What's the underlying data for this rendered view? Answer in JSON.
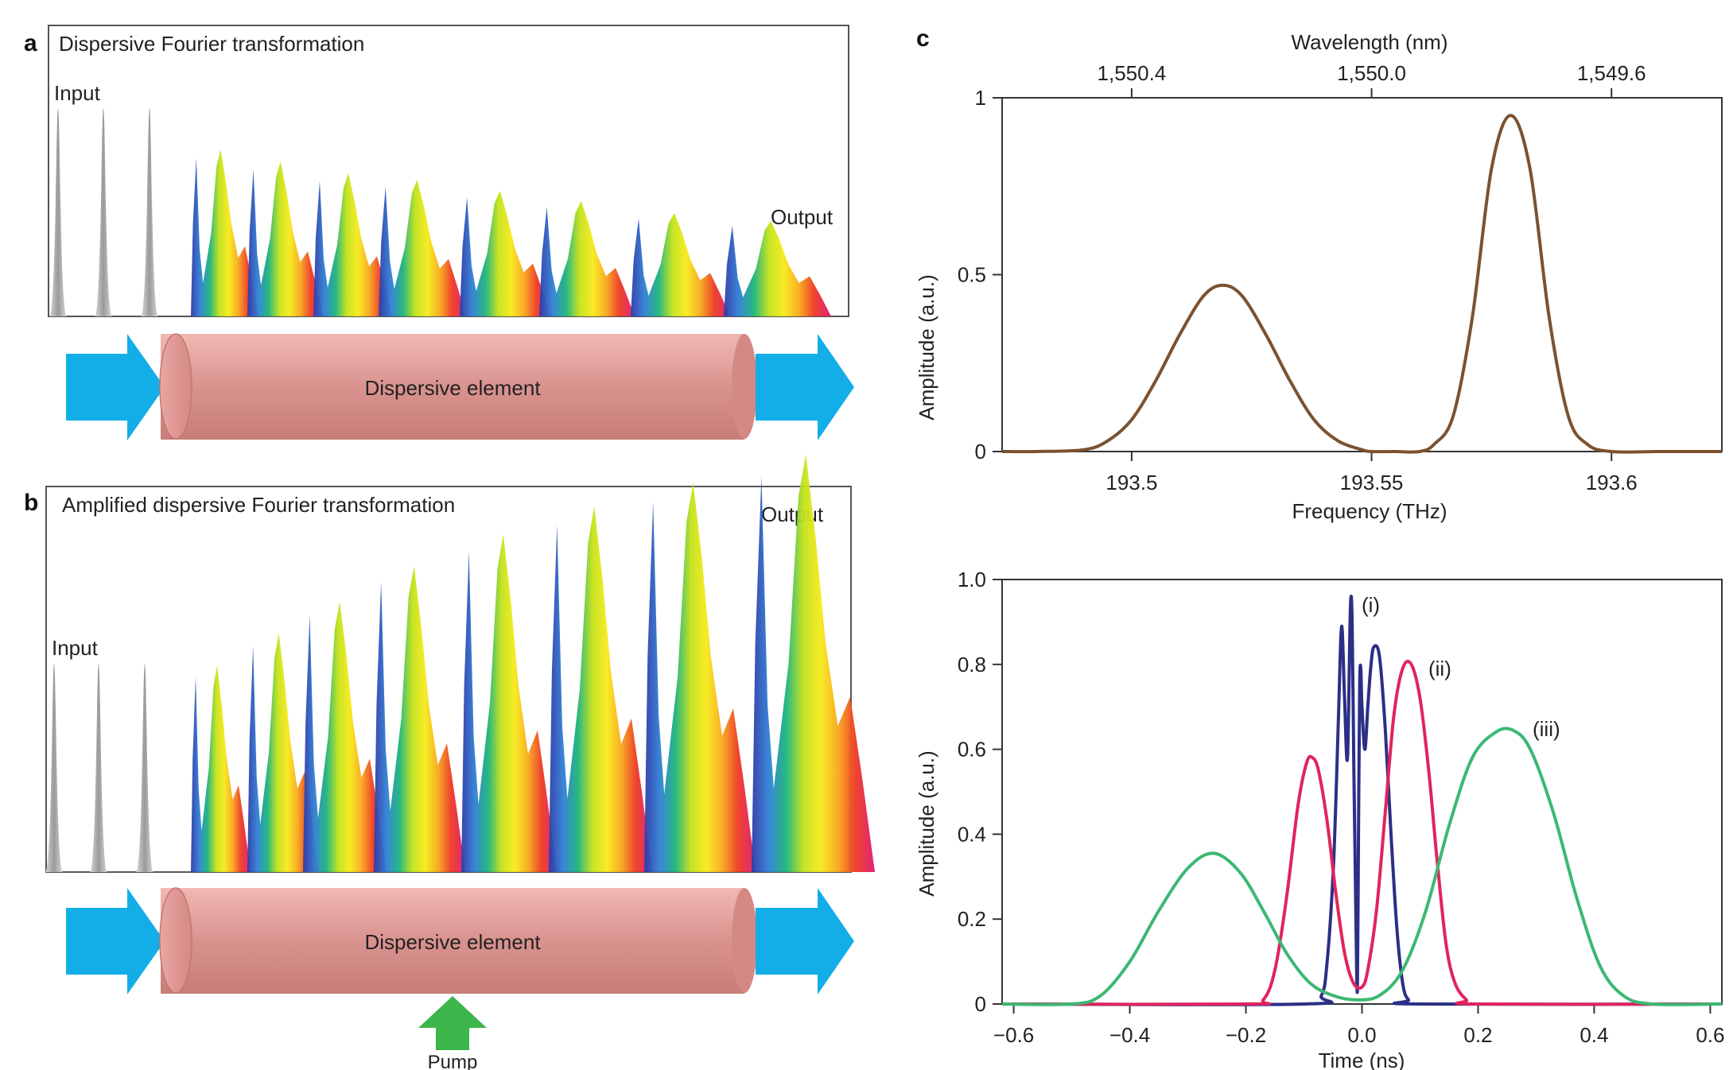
{
  "panels": {
    "a": {
      "label": "a",
      "title": "Dispersive Fourier transformation",
      "input_label": "Input",
      "output_label": "Output",
      "element_label": "Dispersive element"
    },
    "b": {
      "label": "b",
      "title": "Amplified dispersive Fourier transformation",
      "input_label": "Input",
      "output_label": "Output",
      "element_label": "Dispersive element",
      "pump_label": "Pump"
    },
    "c": {
      "label": "c"
    }
  },
  "colors": {
    "arrow": "#13aee8",
    "pump_arrow": "#3cb54a",
    "cylinder": "#d9938f",
    "spectrum_line": "#7b5230",
    "series_i": "#2b2f86",
    "series_ii": "#e0245e",
    "series_iii": "#3cb872"
  },
  "chart_data": [
    {
      "type": "line",
      "title": "",
      "xlabel": "Frequency (THz)",
      "ylabel": "Amplitude (a.u.)",
      "x2label": "Wavelength (nm)",
      "xlim": [
        193.473,
        193.623
      ],
      "ylim": [
        0,
        1
      ],
      "xticks": [
        {
          "value": 193.5,
          "label": "193.5"
        },
        {
          "value": 193.55,
          "label": "193.55"
        },
        {
          "value": 193.6,
          "label": "193.6"
        }
      ],
      "x2ticks": [
        {
          "value": 193.5,
          "label": "1,550.4"
        },
        {
          "value": 193.55,
          "label": "1,550.0"
        },
        {
          "value": 193.6,
          "label": "1,549.6"
        }
      ],
      "yticks": [
        {
          "value": 0,
          "label": "0"
        },
        {
          "value": 0.5,
          "label": "0.5"
        },
        {
          "value": 1,
          "label": "1"
        }
      ],
      "series": [
        {
          "x": [
            193.473,
            193.48,
            193.49,
            193.495,
            193.5,
            193.505,
            193.51,
            193.515,
            193.519,
            193.523,
            193.528,
            193.533,
            193.538,
            193.543,
            193.548,
            193.55,
            193.555,
            193.56,
            193.563,
            193.567,
            193.571,
            193.575,
            193.579,
            193.583,
            193.587,
            193.591,
            193.595,
            193.6,
            193.61,
            193.623
          ],
          "y": [
            0,
            0,
            0.005,
            0.03,
            0.09,
            0.2,
            0.33,
            0.44,
            0.47,
            0.44,
            0.33,
            0.2,
            0.09,
            0.03,
            0.005,
            0,
            0,
            0,
            0.02,
            0.1,
            0.38,
            0.8,
            0.95,
            0.8,
            0.38,
            0.1,
            0.02,
            0,
            0,
            0
          ]
        }
      ]
    },
    {
      "type": "line",
      "title": "",
      "xlabel": "Time (ns)",
      "ylabel": "Amplitude (a.u.)",
      "xlim": [
        -0.62,
        0.62
      ],
      "ylim": [
        0,
        1.0
      ],
      "xticks": [
        {
          "value": -0.6,
          "label": "−0.6"
        },
        {
          "value": -0.4,
          "label": "−0.4"
        },
        {
          "value": -0.2,
          "label": "−0.2"
        },
        {
          "value": 0.0,
          "label": "0.0"
        },
        {
          "value": 0.2,
          "label": "0.2"
        },
        {
          "value": 0.4,
          "label": "0.4"
        },
        {
          "value": 0.6,
          "label": "0.6"
        }
      ],
      "yticks": [
        {
          "value": 0,
          "label": "0"
        },
        {
          "value": 0.2,
          "label": "0.2"
        },
        {
          "value": 0.4,
          "label": "0.4"
        },
        {
          "value": 0.6,
          "label": "0.6"
        },
        {
          "value": 0.8,
          "label": "0.8"
        },
        {
          "value": 1.0,
          "label": "1.0"
        }
      ],
      "series": [
        {
          "label": "(i)",
          "x": [
            -0.62,
            -0.1,
            -0.07,
            -0.06,
            -0.05,
            -0.045,
            -0.04,
            -0.035,
            -0.03,
            -0.025,
            -0.02,
            -0.017,
            -0.014,
            -0.011,
            -0.008,
            -0.006,
            -0.004,
            -0.002,
            0.0,
            0.005,
            0.01,
            0.015,
            0.02,
            0.03,
            0.04,
            0.05,
            0.06,
            0.07,
            0.08,
            0.1,
            0.62
          ],
          "y": [
            0,
            0,
            0.02,
            0.1,
            0.3,
            0.48,
            0.7,
            0.89,
            0.72,
            0.58,
            0.93,
            0.9,
            0.55,
            0.25,
            0.03,
            0.4,
            0.75,
            0.79,
            0.7,
            0.6,
            0.7,
            0.79,
            0.84,
            0.82,
            0.65,
            0.4,
            0.18,
            0.05,
            0.01,
            0,
            0
          ]
        },
        {
          "label": "(ii)",
          "x": [
            -0.62,
            -0.2,
            -0.17,
            -0.15,
            -0.13,
            -0.11,
            -0.095,
            -0.085,
            -0.075,
            -0.06,
            -0.045,
            -0.03,
            -0.015,
            0.0,
            0.01,
            0.025,
            0.04,
            0.055,
            0.07,
            0.085,
            0.1,
            0.115,
            0.13,
            0.145,
            0.16,
            0.18,
            0.2,
            0.62
          ],
          "y": [
            0,
            0,
            0.01,
            0.08,
            0.25,
            0.47,
            0.57,
            0.58,
            0.55,
            0.43,
            0.26,
            0.12,
            0.05,
            0.04,
            0.08,
            0.22,
            0.45,
            0.68,
            0.79,
            0.8,
            0.72,
            0.55,
            0.33,
            0.14,
            0.05,
            0.01,
            0,
            0
          ]
        },
        {
          "label": "(iii)",
          "x": [
            -0.62,
            -0.5,
            -0.45,
            -0.4,
            -0.35,
            -0.3,
            -0.255,
            -0.21,
            -0.17,
            -0.13,
            -0.09,
            -0.05,
            -0.01,
            0.03,
            0.07,
            0.11,
            0.15,
            0.19,
            0.23,
            0.26,
            0.29,
            0.33,
            0.37,
            0.41,
            0.45,
            0.5,
            0.62
          ],
          "y": [
            0,
            0,
            0.02,
            0.1,
            0.22,
            0.32,
            0.355,
            0.31,
            0.22,
            0.12,
            0.05,
            0.02,
            0.01,
            0.02,
            0.08,
            0.22,
            0.42,
            0.58,
            0.64,
            0.645,
            0.6,
            0.45,
            0.25,
            0.09,
            0.02,
            0,
            0
          ]
        }
      ]
    }
  ]
}
